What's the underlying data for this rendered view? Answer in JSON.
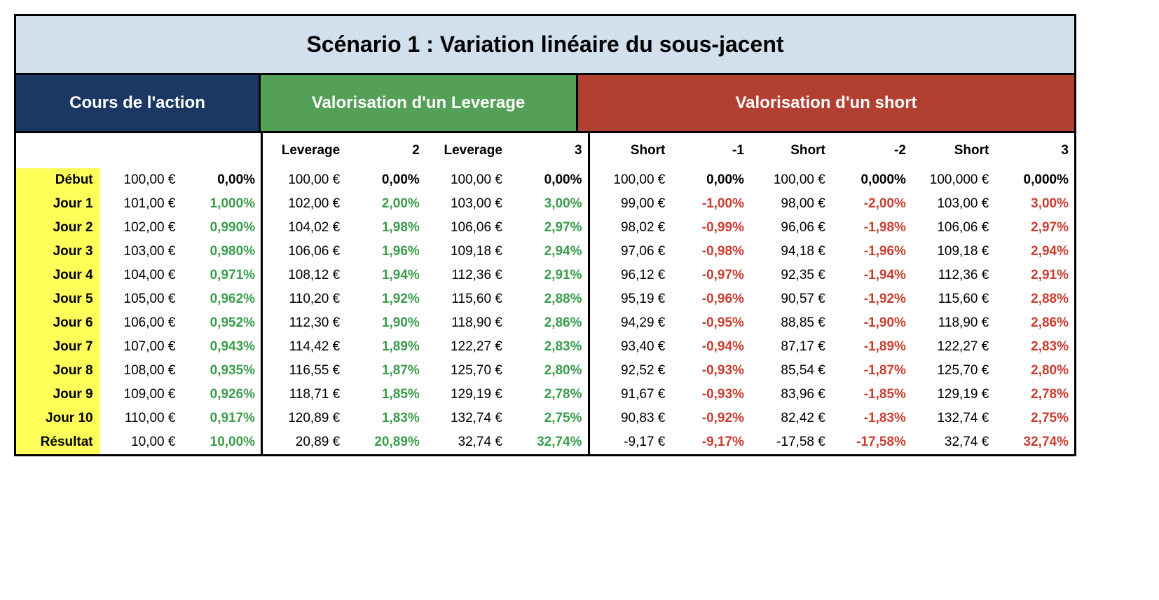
{
  "title": "Scénario 1 : Variation linéaire du sous-jacent",
  "sections": {
    "blue": "Cours de l'action",
    "green": "Valorisation d'un Leverage",
    "red": "Valorisation d'un short"
  },
  "subheaders": [
    "",
    "",
    "",
    "Leverage",
    "2",
    "Leverage",
    "3",
    "Short",
    "-1",
    "Short",
    "-2",
    "Short",
    "3"
  ],
  "colors": {
    "title_bg": "#d2e0ee",
    "blue": "#1b3865",
    "green_hdr": "#54a056",
    "red_hdr": "#b14032",
    "yellow": "#ffff59",
    "green_txt": "#3b9d4b",
    "red_txt": "#c93e31"
  },
  "rows": [
    {
      "label": "Début",
      "c": [
        {
          "v": "100,00 €"
        },
        {
          "v": "0,00%",
          "s": "pct-bold"
        },
        {
          "v": "100,00 €"
        },
        {
          "v": "0,00%",
          "s": "pct-bold"
        },
        {
          "v": "100,00 €"
        },
        {
          "v": "0,00%",
          "s": "pct-bold"
        },
        {
          "v": "100,00 €"
        },
        {
          "v": "0,00%",
          "s": "pct-bold"
        },
        {
          "v": "100,00 €"
        },
        {
          "v": "0,000%",
          "s": "pct-bold"
        },
        {
          "v": "100,000 €"
        },
        {
          "v": "0,000%",
          "s": "pct-bold"
        }
      ]
    },
    {
      "label": "Jour 1",
      "c": [
        {
          "v": "101,00 €"
        },
        {
          "v": "1,000%",
          "s": "pct-green"
        },
        {
          "v": "102,00 €"
        },
        {
          "v": "2,00%",
          "s": "pct-green"
        },
        {
          "v": "103,00 €"
        },
        {
          "v": "3,00%",
          "s": "pct-green"
        },
        {
          "v": "99,00 €"
        },
        {
          "v": "-1,00%",
          "s": "pct-red"
        },
        {
          "v": "98,00 €"
        },
        {
          "v": "-2,00%",
          "s": "pct-red"
        },
        {
          "v": "103,00 €"
        },
        {
          "v": "3,00%",
          "s": "pct-red"
        }
      ]
    },
    {
      "label": "Jour 2",
      "c": [
        {
          "v": "102,00 €"
        },
        {
          "v": "0,990%",
          "s": "pct-green"
        },
        {
          "v": "104,02 €"
        },
        {
          "v": "1,98%",
          "s": "pct-green"
        },
        {
          "v": "106,06 €"
        },
        {
          "v": "2,97%",
          "s": "pct-green"
        },
        {
          "v": "98,02 €"
        },
        {
          "v": "-0,99%",
          "s": "pct-red"
        },
        {
          "v": "96,06 €"
        },
        {
          "v": "-1,98%",
          "s": "pct-red"
        },
        {
          "v": "106,06 €"
        },
        {
          "v": "2,97%",
          "s": "pct-red"
        }
      ]
    },
    {
      "label": "Jour 3",
      "c": [
        {
          "v": "103,00 €"
        },
        {
          "v": "0,980%",
          "s": "pct-green"
        },
        {
          "v": "106,06 €"
        },
        {
          "v": "1,96%",
          "s": "pct-green"
        },
        {
          "v": "109,18 €"
        },
        {
          "v": "2,94%",
          "s": "pct-green"
        },
        {
          "v": "97,06 €"
        },
        {
          "v": "-0,98%",
          "s": "pct-red"
        },
        {
          "v": "94,18 €"
        },
        {
          "v": "-1,96%",
          "s": "pct-red"
        },
        {
          "v": "109,18 €"
        },
        {
          "v": "2,94%",
          "s": "pct-red"
        }
      ]
    },
    {
      "label": "Jour 4",
      "c": [
        {
          "v": "104,00 €"
        },
        {
          "v": "0,971%",
          "s": "pct-green"
        },
        {
          "v": "108,12 €"
        },
        {
          "v": "1,94%",
          "s": "pct-green"
        },
        {
          "v": "112,36 €"
        },
        {
          "v": "2,91%",
          "s": "pct-green"
        },
        {
          "v": "96,12 €"
        },
        {
          "v": "-0,97%",
          "s": "pct-red"
        },
        {
          "v": "92,35 €"
        },
        {
          "v": "-1,94%",
          "s": "pct-red"
        },
        {
          "v": "112,36 €"
        },
        {
          "v": "2,91%",
          "s": "pct-red"
        }
      ]
    },
    {
      "label": "Jour 5",
      "c": [
        {
          "v": "105,00 €"
        },
        {
          "v": "0,962%",
          "s": "pct-green"
        },
        {
          "v": "110,20 €"
        },
        {
          "v": "1,92%",
          "s": "pct-green"
        },
        {
          "v": "115,60 €"
        },
        {
          "v": "2,88%",
          "s": "pct-green"
        },
        {
          "v": "95,19 €"
        },
        {
          "v": "-0,96%",
          "s": "pct-red"
        },
        {
          "v": "90,57 €"
        },
        {
          "v": "-1,92%",
          "s": "pct-red"
        },
        {
          "v": "115,60 €"
        },
        {
          "v": "2,88%",
          "s": "pct-red"
        }
      ]
    },
    {
      "label": "Jour 6",
      "c": [
        {
          "v": "106,00 €"
        },
        {
          "v": "0,952%",
          "s": "pct-green"
        },
        {
          "v": "112,30 €"
        },
        {
          "v": "1,90%",
          "s": "pct-green"
        },
        {
          "v": "118,90 €"
        },
        {
          "v": "2,86%",
          "s": "pct-green"
        },
        {
          "v": "94,29 €"
        },
        {
          "v": "-0,95%",
          "s": "pct-red"
        },
        {
          "v": "88,85 €"
        },
        {
          "v": "-1,90%",
          "s": "pct-red"
        },
        {
          "v": "118,90 €"
        },
        {
          "v": "2,86%",
          "s": "pct-red"
        }
      ]
    },
    {
      "label": "Jour 7",
      "c": [
        {
          "v": "107,00 €"
        },
        {
          "v": "0,943%",
          "s": "pct-green"
        },
        {
          "v": "114,42 €"
        },
        {
          "v": "1,89%",
          "s": "pct-green"
        },
        {
          "v": "122,27 €"
        },
        {
          "v": "2,83%",
          "s": "pct-green"
        },
        {
          "v": "93,40 €"
        },
        {
          "v": "-0,94%",
          "s": "pct-red"
        },
        {
          "v": "87,17 €"
        },
        {
          "v": "-1,89%",
          "s": "pct-red"
        },
        {
          "v": "122,27 €"
        },
        {
          "v": "2,83%",
          "s": "pct-red"
        }
      ]
    },
    {
      "label": "Jour 8",
      "c": [
        {
          "v": "108,00 €"
        },
        {
          "v": "0,935%",
          "s": "pct-green"
        },
        {
          "v": "116,55 €"
        },
        {
          "v": "1,87%",
          "s": "pct-green"
        },
        {
          "v": "125,70 €"
        },
        {
          "v": "2,80%",
          "s": "pct-green"
        },
        {
          "v": "92,52 €"
        },
        {
          "v": "-0,93%",
          "s": "pct-red"
        },
        {
          "v": "85,54 €"
        },
        {
          "v": "-1,87%",
          "s": "pct-red"
        },
        {
          "v": "125,70 €"
        },
        {
          "v": "2,80%",
          "s": "pct-red"
        }
      ]
    },
    {
      "label": "Jour 9",
      "c": [
        {
          "v": "109,00 €"
        },
        {
          "v": "0,926%",
          "s": "pct-green"
        },
        {
          "v": "118,71 €"
        },
        {
          "v": "1,85%",
          "s": "pct-green"
        },
        {
          "v": "129,19 €"
        },
        {
          "v": "2,78%",
          "s": "pct-green"
        },
        {
          "v": "91,67 €"
        },
        {
          "v": "-0,93%",
          "s": "pct-red"
        },
        {
          "v": "83,96 €"
        },
        {
          "v": "-1,85%",
          "s": "pct-red"
        },
        {
          "v": "129,19 €"
        },
        {
          "v": "2,78%",
          "s": "pct-red"
        }
      ]
    },
    {
      "label": "Jour 10",
      "c": [
        {
          "v": "110,00 €"
        },
        {
          "v": "0,917%",
          "s": "pct-green"
        },
        {
          "v": "120,89 €"
        },
        {
          "v": "1,83%",
          "s": "pct-green"
        },
        {
          "v": "132,74 €"
        },
        {
          "v": "2,75%",
          "s": "pct-green"
        },
        {
          "v": "90,83 €"
        },
        {
          "v": "-0,92%",
          "s": "pct-red"
        },
        {
          "v": "82,42 €"
        },
        {
          "v": "-1,83%",
          "s": "pct-red"
        },
        {
          "v": "132,74 €"
        },
        {
          "v": "2,75%",
          "s": "pct-red"
        }
      ]
    },
    {
      "label": "Résultat",
      "c": [
        {
          "v": "10,00 €"
        },
        {
          "v": "10,00%",
          "s": "pct-green"
        },
        {
          "v": "20,89 €"
        },
        {
          "v": "20,89%",
          "s": "pct-green"
        },
        {
          "v": "32,74 €"
        },
        {
          "v": "32,74%",
          "s": "pct-green"
        },
        {
          "v": "-9,17 €"
        },
        {
          "v": "-9,17%",
          "s": "pct-red"
        },
        {
          "v": "-17,58 €"
        },
        {
          "v": "-17,58%",
          "s": "pct-red"
        },
        {
          "v": "32,74 €"
        },
        {
          "v": "32,74%",
          "s": "pct-red"
        }
      ]
    }
  ]
}
